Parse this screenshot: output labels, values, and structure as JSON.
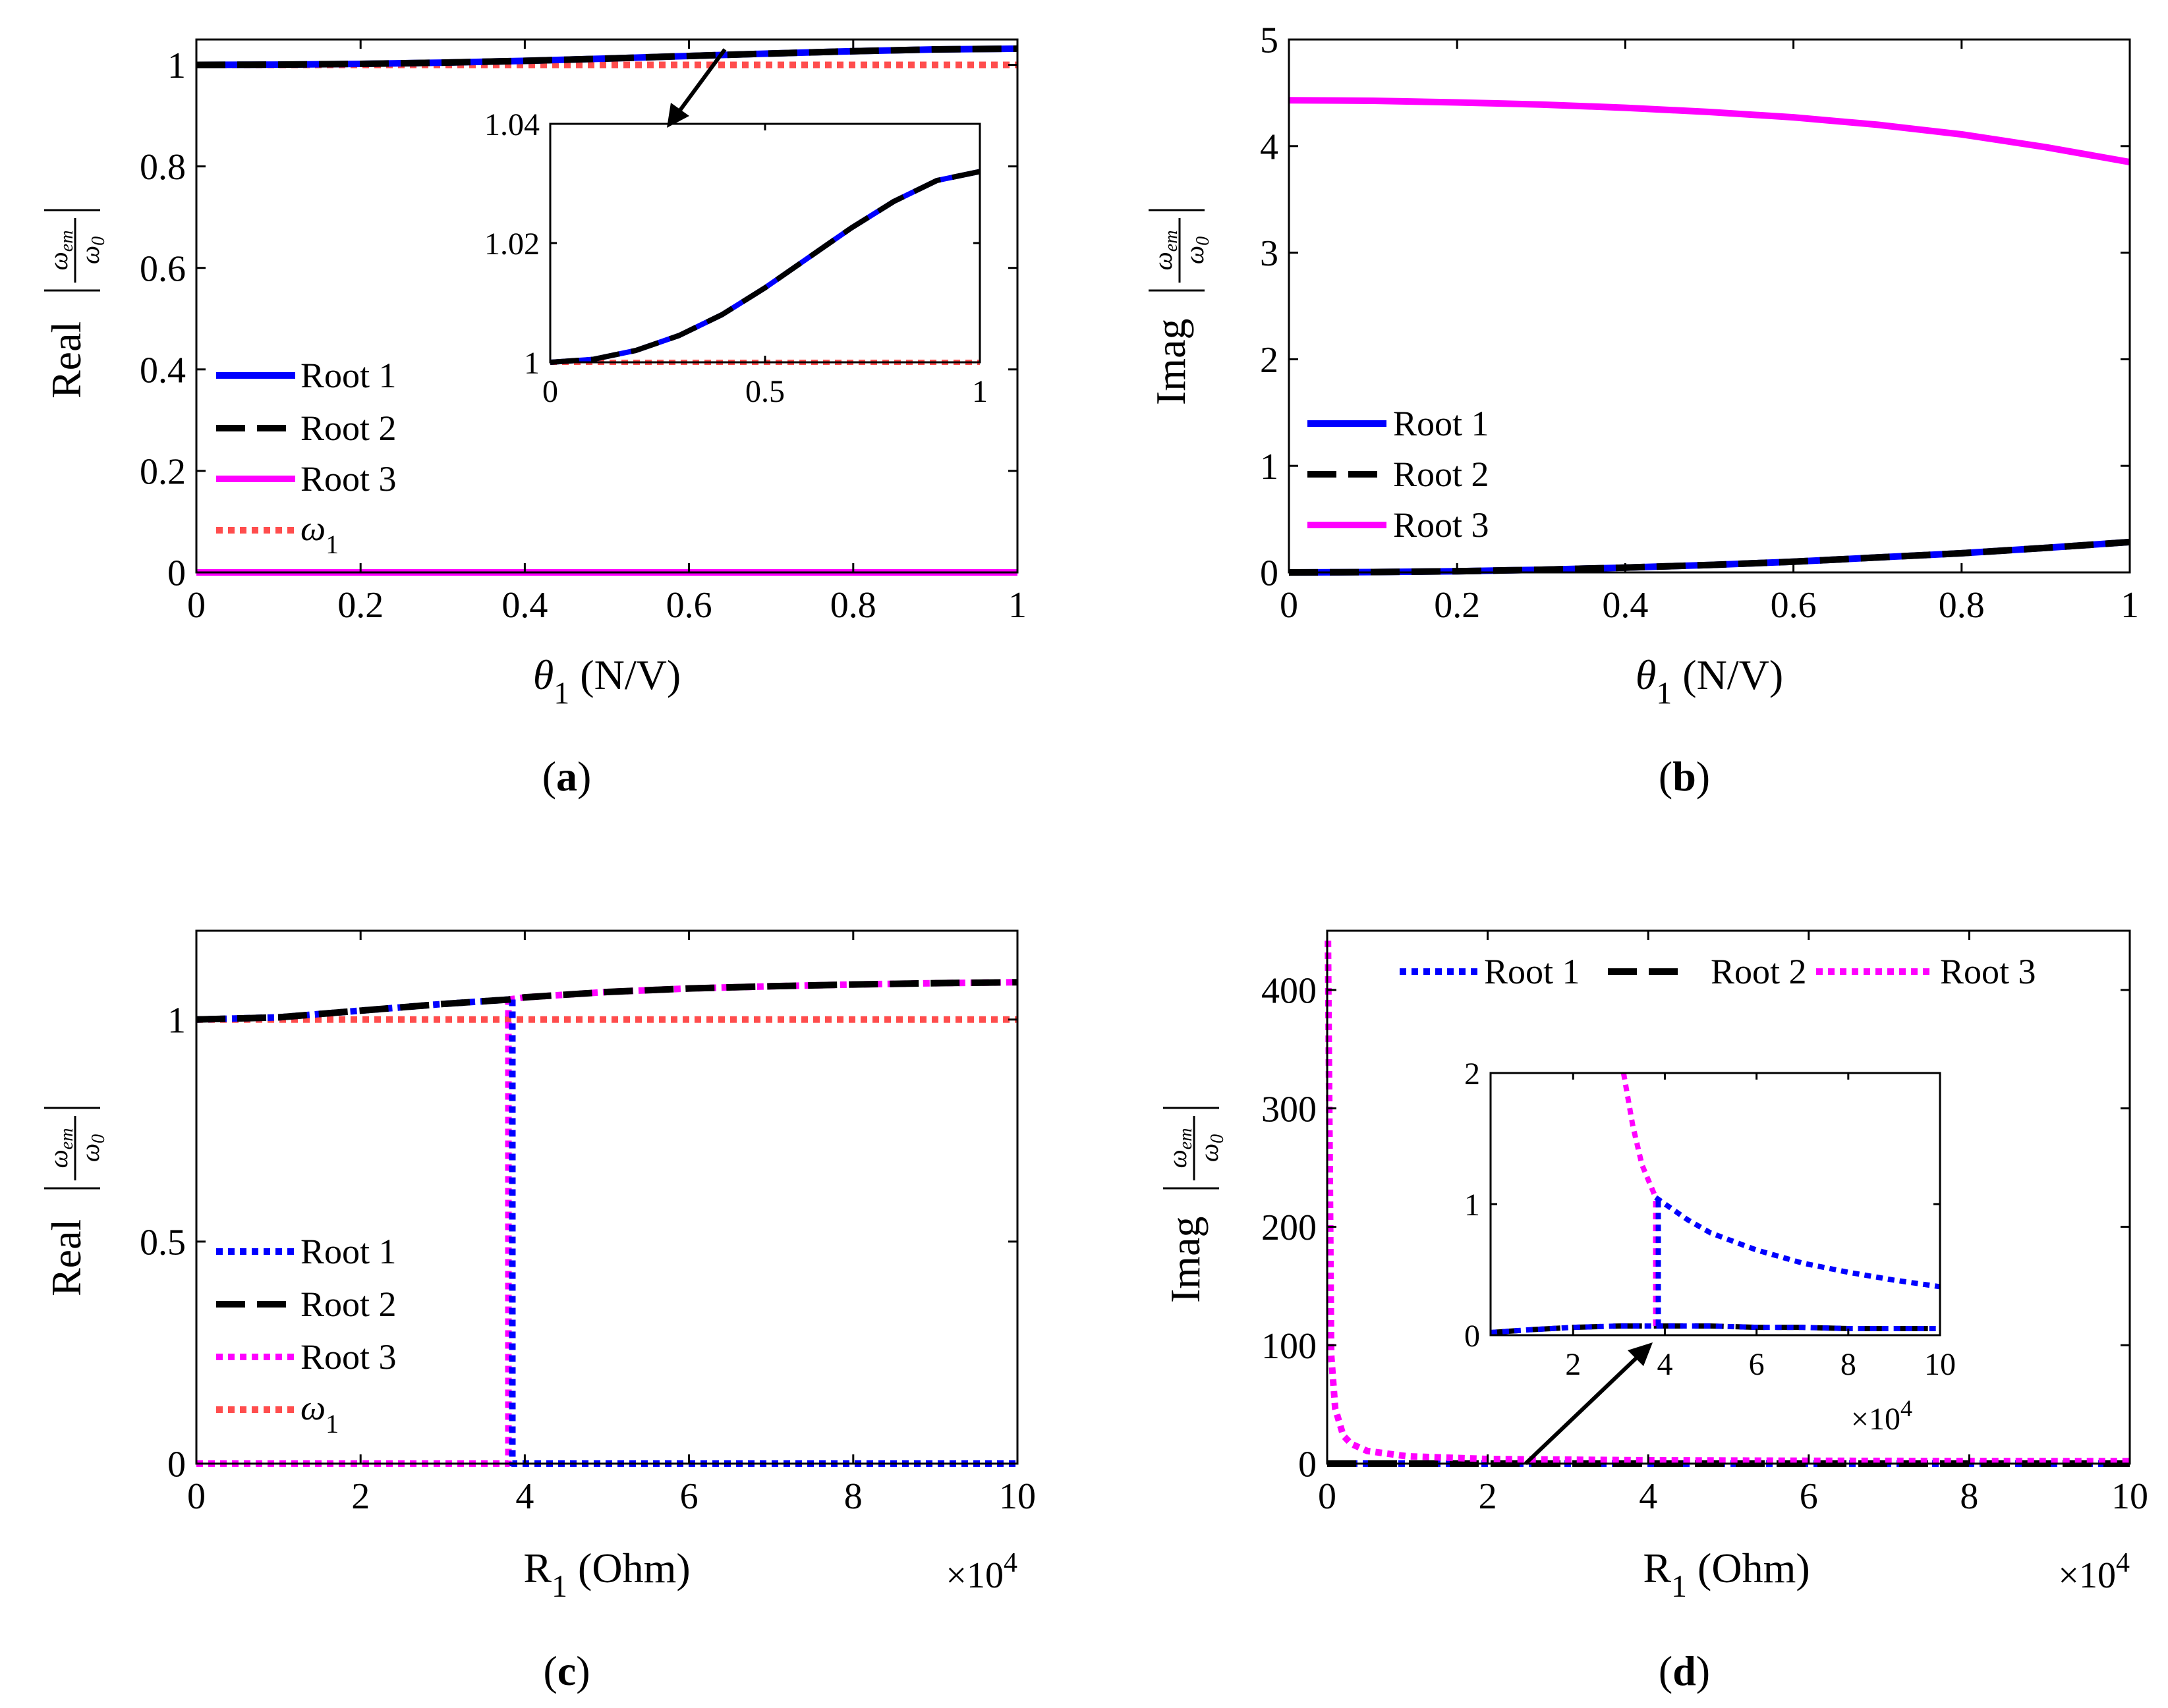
{
  "chart_data": [
    {
      "id": "a",
      "type": "line",
      "caption_letter": "a",
      "xlabel_sym": "θ",
      "xlabel_sub": "1",
      "xlabel_unit": " (N/V)",
      "ylabel": "Real",
      "ylabel_frac_num": "ω_em",
      "ylabel_frac_den": "ω_0",
      "xlim": [
        0,
        1
      ],
      "ylim": [
        0,
        1.05
      ],
      "xticks": [
        "0",
        "0.2",
        "0.4",
        "0.6",
        "0.8",
        "1"
      ],
      "xtick_values": [
        0,
        0.2,
        0.4,
        0.6,
        0.8,
        1
      ],
      "yticks": [
        "0",
        "0.2",
        "0.4",
        "0.6",
        "0.8",
        "1"
      ],
      "ytick_values": [
        0,
        0.2,
        0.4,
        0.6,
        0.8,
        1
      ],
      "x": [
        0,
        0.1,
        0.2,
        0.3,
        0.4,
        0.5,
        0.6,
        0.7,
        0.8,
        0.9,
        1.0
      ],
      "series": [
        {
          "name": "Root 1",
          "style": "solid",
          "color": "#0000ff",
          "values": [
            1.0,
            1.0005,
            1.002,
            1.0045,
            1.008,
            1.0125,
            1.0175,
            1.0225,
            1.027,
            1.0305,
            1.032
          ]
        },
        {
          "name": "Root 2",
          "style": "dashed",
          "color": "#000000",
          "values": [
            1.0,
            1.0005,
            1.002,
            1.0045,
            1.008,
            1.0125,
            1.0175,
            1.0225,
            1.027,
            1.0305,
            1.032
          ]
        },
        {
          "name": "Root 3",
          "style": "solid",
          "color": "#ff00ff",
          "values": [
            0,
            0,
            0,
            0,
            0,
            0,
            0,
            0,
            0,
            0,
            0
          ]
        },
        {
          "name": "ω",
          "name_sub": "1",
          "style": "dotted",
          "color": "#ff4d4d",
          "values": [
            1,
            1,
            1,
            1,
            1,
            1,
            1,
            1,
            1,
            1,
            1
          ]
        }
      ],
      "legend_position": "bottom-left",
      "inset": {
        "xlim": [
          0,
          1
        ],
        "ylim": [
          1.0,
          1.04
        ],
        "xticks": [
          "0",
          "0.5",
          "1"
        ],
        "xtick_values": [
          0,
          0.5,
          1
        ],
        "yticks": [
          "1",
          "1.02",
          "1.04"
        ],
        "ytick_values": [
          1.0,
          1.02,
          1.04
        ]
      }
    },
    {
      "id": "b",
      "type": "line",
      "caption_letter": "b",
      "xlabel_sym": "θ",
      "xlabel_sub": "1",
      "xlabel_unit": " (N/V)",
      "ylabel": "Imag",
      "ylabel_frac_num": "ω_em",
      "ylabel_frac_den": "ω_0",
      "xlim": [
        0,
        1
      ],
      "ylim": [
        0,
        5
      ],
      "xticks": [
        "0",
        "0.2",
        "0.4",
        "0.6",
        "0.8",
        "1"
      ],
      "xtick_values": [
        0,
        0.2,
        0.4,
        0.6,
        0.8,
        1
      ],
      "yticks": [
        "0",
        "1",
        "2",
        "3",
        "4",
        "5"
      ],
      "ytick_values": [
        0,
        1,
        2,
        3,
        4,
        5
      ],
      "x": [
        0,
        0.1,
        0.2,
        0.3,
        0.4,
        0.5,
        0.6,
        0.7,
        0.8,
        0.9,
        1.0
      ],
      "series": [
        {
          "name": "Root 1",
          "style": "solid",
          "color": "#0000ff",
          "values": [
            0,
            0.003,
            0.011,
            0.025,
            0.045,
            0.07,
            0.1,
            0.14,
            0.18,
            0.23,
            0.285
          ]
        },
        {
          "name": "Root 2",
          "style": "dashed",
          "color": "#000000",
          "values": [
            0,
            0.003,
            0.011,
            0.025,
            0.045,
            0.07,
            0.1,
            0.14,
            0.18,
            0.23,
            0.285
          ]
        },
        {
          "name": "Root 3",
          "style": "solid",
          "color": "#ff00ff",
          "values": [
            4.43,
            4.425,
            4.41,
            4.39,
            4.36,
            4.32,
            4.27,
            4.2,
            4.11,
            3.99,
            3.85
          ]
        }
      ],
      "legend_position": "bottom-left"
    },
    {
      "id": "c",
      "type": "line",
      "caption_letter": "c",
      "xlabel_sym": "R",
      "xlabel_sub": "1",
      "xlabel_unit": " (Ohm)",
      "ylabel": "Real",
      "ylabel_frac_num": "ω_em",
      "ylabel_frac_den": "ω_0",
      "x_multiplier_base": "×10",
      "x_multiplier_exp": "4",
      "xlim": [
        0,
        10
      ],
      "ylim": [
        0,
        1.2
      ],
      "xticks": [
        "0",
        "2",
        "4",
        "6",
        "8",
        "10"
      ],
      "xtick_values": [
        0,
        2,
        4,
        6,
        8,
        10
      ],
      "yticks": [
        "0",
        "0.5",
        "1"
      ],
      "ytick_values": [
        0,
        0.5,
        1
      ],
      "x": [
        0,
        1,
        2,
        3,
        3.8,
        4,
        5,
        6,
        7,
        8,
        9,
        10
      ],
      "series": [
        {
          "name": "Root 1",
          "style": "dotted",
          "color": "#0000ff",
          "values": [
            1.0,
            1.005,
            1.02,
            1.035,
            1.045,
            0,
            0,
            0,
            0,
            0,
            0,
            0
          ]
        },
        {
          "name": "Root 2",
          "style": "dashed",
          "color": "#000000",
          "values": [
            1.0,
            1.005,
            1.02,
            1.035,
            1.045,
            1.05,
            1.062,
            1.07,
            1.075,
            1.079,
            1.082,
            1.084
          ]
        },
        {
          "name": "Root 3",
          "style": "dotted",
          "color": "#ff00ff",
          "values": [
            0,
            0,
            0,
            0,
            0,
            1.05,
            1.062,
            1.07,
            1.075,
            1.079,
            1.082,
            1.084
          ]
        },
        {
          "name": "ω",
          "name_sub": "1",
          "style": "dotted",
          "color": "#ff4d4d",
          "values": [
            1,
            1,
            1,
            1,
            1,
            1,
            1,
            1,
            1,
            1,
            1,
            1
          ]
        }
      ],
      "legend_position": "bottom-left"
    },
    {
      "id": "d",
      "type": "line",
      "caption_letter": "d",
      "xlabel_sym": "R",
      "xlabel_sub": "1",
      "xlabel_unit": " (Ohm)",
      "ylabel": "Imag",
      "ylabel_frac_num": "ω_em",
      "ylabel_frac_den": "ω_0",
      "x_multiplier_base": "×10",
      "x_multiplier_exp": "4",
      "xlim": [
        0,
        10
      ],
      "ylim": [
        0,
        450
      ],
      "xticks": [
        "0",
        "2",
        "4",
        "6",
        "8",
        "10"
      ],
      "xtick_values": [
        0,
        2,
        4,
        6,
        8,
        10
      ],
      "yticks": [
        "0",
        "100",
        "200",
        "300",
        "400"
      ],
      "ytick_values": [
        0,
        100,
        200,
        300,
        400
      ],
      "series": [
        {
          "name": "Root 1",
          "style": "dotted",
          "color": "#0000ff"
        },
        {
          "name": "Root 2",
          "style": "dashed",
          "color": "#000000"
        },
        {
          "name": "Root 3",
          "style": "dotted",
          "color": "#ff00ff"
        }
      ],
      "root3_curve": {
        "x": [
          0.01,
          0.05,
          0.1,
          0.2,
          0.3,
          0.5,
          1,
          2,
          4,
          6,
          8,
          10
        ],
        "y": [
          440,
          90,
          45,
          22,
          15,
          9,
          4.5,
          2.2,
          1.1,
          0.7,
          0.5,
          0.4
        ]
      },
      "legend_position": "top",
      "inset": {
        "xlim": [
          0.2,
          10
        ],
        "ylim": [
          0,
          2
        ],
        "xticks": [
          "2",
          "4",
          "6",
          "8",
          "10"
        ],
        "xtick_values": [
          2,
          4,
          6,
          8,
          10
        ],
        "yticks": [
          "0",
          "1",
          "2"
        ],
        "ytick_values": [
          0,
          1,
          2
        ],
        "x_multiplier_base": "×10",
        "x_multiplier_exp": "4",
        "root3_curve": {
          "x": [
            3.1,
            3.3,
            3.5,
            3.8
          ],
          "y": [
            2.0,
            1.6,
            1.3,
            1.05
          ]
        },
        "root1_curve": {
          "x": [
            3.8,
            4.5,
            5,
            6,
            7,
            8,
            9,
            10
          ],
          "y": [
            1.05,
            0.88,
            0.78,
            0.65,
            0.55,
            0.48,
            0.42,
            0.37
          ]
        },
        "lower_curve": {
          "x": [
            0.2,
            1,
            2,
            3,
            3.8,
            5,
            6,
            7,
            8,
            9,
            10
          ],
          "y": [
            0.02,
            0.04,
            0.06,
            0.07,
            0.07,
            0.07,
            0.06,
            0.06,
            0.05,
            0.05,
            0.05
          ]
        }
      }
    }
  ]
}
